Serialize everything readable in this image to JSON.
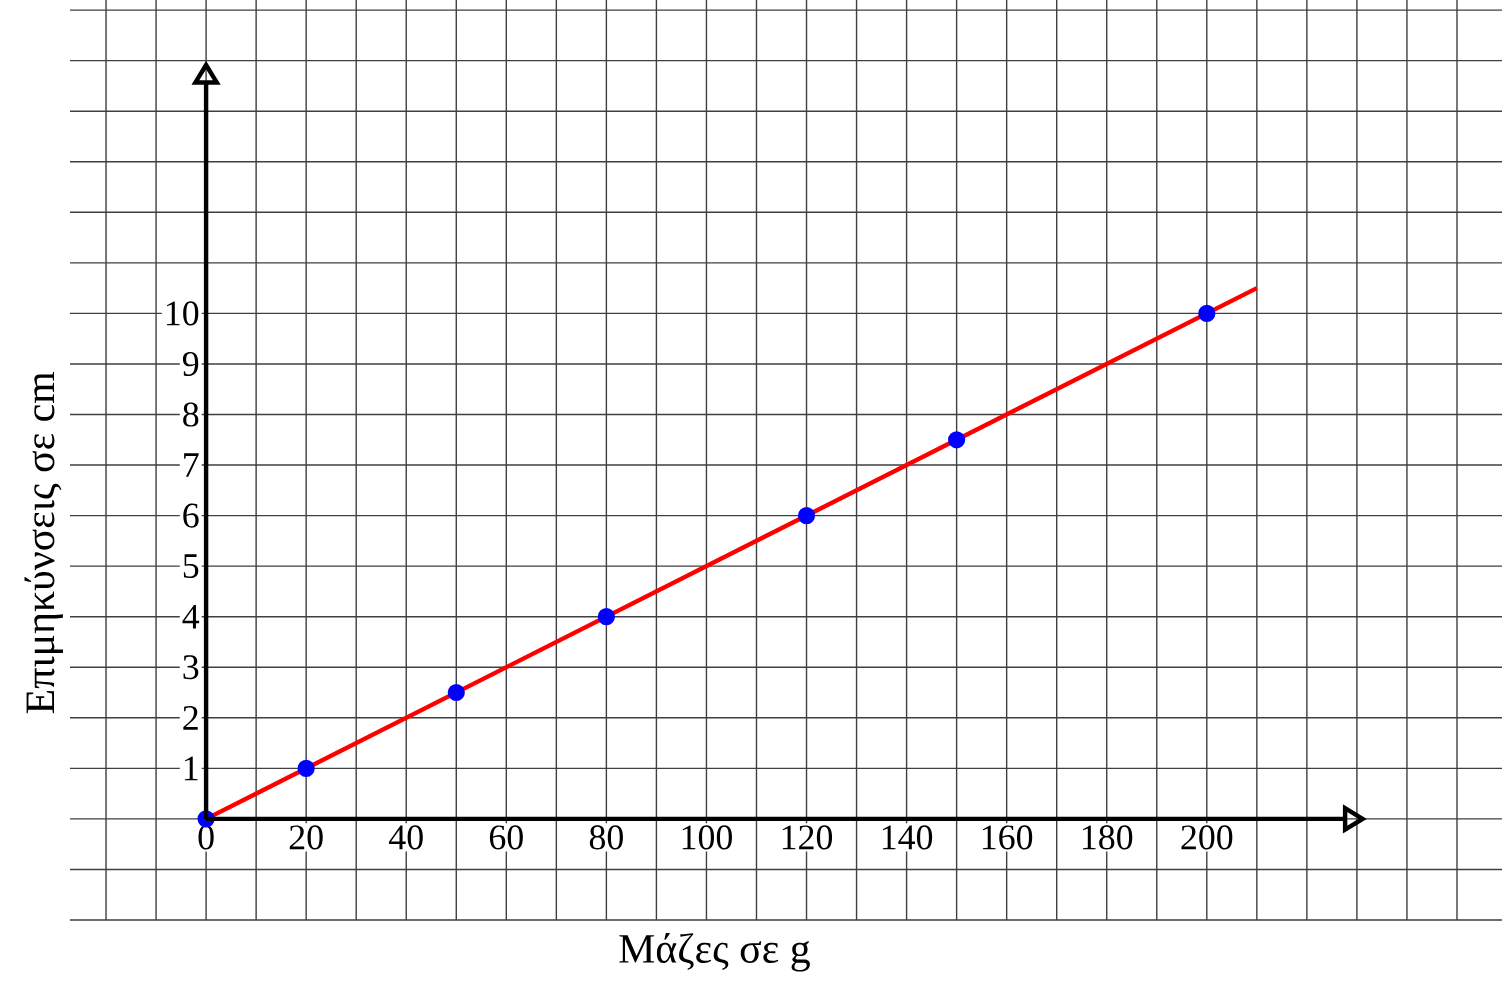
{
  "chart_data": {
    "type": "scatter",
    "xlabel": "Μάζες σε g",
    "ylabel": "Επιμηκύνσεις σε cm",
    "grid": true,
    "marker": "circle",
    "xlim": [
      -27.2,
      259
    ],
    "ylim": [
      -2,
      16.2
    ],
    "xticks": [
      {
        "value": -20,
        "label": null
      },
      {
        "value": -10,
        "label": null
      },
      0,
      {
        "value": 10,
        "label": null
      },
      20,
      {
        "value": 30,
        "label": null
      },
      40,
      {
        "value": 50,
        "label": null
      },
      60,
      {
        "value": 70,
        "label": null
      },
      80,
      {
        "value": 90,
        "label": null
      },
      100,
      {
        "value": 110,
        "label": null
      },
      120,
      {
        "value": 130,
        "label": null
      },
      140,
      {
        "value": 150,
        "label": null
      },
      160,
      {
        "value": 170,
        "label": null
      },
      180,
      {
        "value": 190,
        "label": null
      },
      200,
      {
        "value": 210,
        "label": null
      },
      {
        "value": 220,
        "label": null
      },
      {
        "value": 230,
        "label": null
      },
      {
        "value": 240,
        "label": null
      },
      {
        "value": 250,
        "label": null
      }
    ],
    "yticks": [
      {
        "value": -2,
        "label": null
      },
      {
        "value": -1,
        "label": null
      },
      {
        "value": 0,
        "label": null
      },
      1,
      2,
      3,
      4,
      5,
      6,
      7,
      8,
      9,
      10,
      {
        "value": 11,
        "label": null
      },
      {
        "value": 12,
        "label": null
      },
      {
        "value": 13,
        "label": null
      },
      {
        "value": 14,
        "label": null
      },
      {
        "value": 15,
        "label": null
      },
      {
        "value": 16,
        "label": null
      }
    ],
    "x": [
      0,
      20,
      50,
      80,
      120,
      150,
      200
    ],
    "series": [
      {
        "type": "line",
        "marker": "none",
        "color": "#ff0000",
        "x": [
          0,
          210
        ],
        "values": [
          0,
          10.5
        ]
      },
      {
        "color": "#0000ff",
        "values": [
          0,
          1,
          2.5,
          4,
          6,
          7.5,
          10
        ]
      }
    ]
  }
}
